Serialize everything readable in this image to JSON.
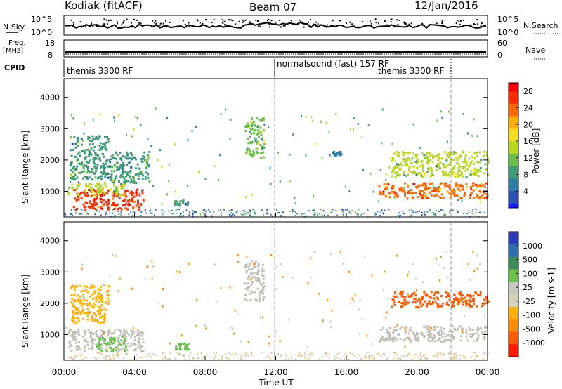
{
  "header": {
    "station": "Kodiak (fitACF)",
    "beam": "Beam 07",
    "date": "12/Jan/2016"
  },
  "panels": {
    "nsky": {
      "label": "N.Sky",
      "right_label": "N.Search",
      "left_ticks": [
        "10^5",
        "10^0"
      ],
      "right_ticks": [
        "10^5",
        "10^0"
      ]
    },
    "freq": {
      "label_line1": "Freq.",
      "label_line2": "[MHz]",
      "right_label": "Nave",
      "left_ticks": [
        "18",
        "8"
      ],
      "right_ticks": [
        "60",
        "0"
      ]
    },
    "cpid": {
      "label": "CPID",
      "segments": [
        "themis 3300 RF",
        "normalsound (fast) 157 RF",
        "themis 3300 RF"
      ]
    }
  },
  "colors": {
    "power_scale": [
      "#1a1aff",
      "#2a4fb0",
      "#2e7fa8",
      "#3f9a7a",
      "#6ac04a",
      "#b8d820",
      "#f0e020",
      "#ffb000",
      "#ff6a00",
      "#ff2a00",
      "#ff0000"
    ],
    "velocity_scale": [
      "#2a3ab8",
      "#2f6fae",
      "#3a8a5a",
      "#6ac04a",
      "#c8c8c0",
      "#d9d0b8",
      "#ffb000",
      "#ff8a00",
      "#ff5a00",
      "#ff1a00"
    ],
    "ground_scatter": "#c0c0b8"
  },
  "chart_data": [
    {
      "type": "heatmap",
      "name": "power",
      "ylabel": "Slant Range [km]",
      "xlim": [
        "00:00",
        "24:00"
      ],
      "ylim": [
        180,
        4600
      ],
      "y_ticks": [
        1000,
        2000,
        3000,
        4000
      ],
      "x_ticks": [
        "00:00",
        "04:00",
        "08:00",
        "12:00",
        "16:00",
        "20:00",
        "00:00"
      ],
      "xlabel": "Time UT",
      "colorbar": {
        "label": "Power [dB]",
        "ticks": [
          4,
          8,
          12,
          16,
          20,
          24,
          28
        ],
        "range": [
          0,
          30
        ]
      },
      "regions": [
        {
          "t0": 0.5,
          "t1": 4.5,
          "r0": 450,
          "r1": 1100,
          "level": 28
        },
        {
          "t0": 0.2,
          "t1": 3.5,
          "r0": 900,
          "r1": 1300,
          "level": 16
        },
        {
          "t0": 0.3,
          "t1": 2.5,
          "r0": 1400,
          "r1": 2800,
          "level": 8
        },
        {
          "t0": 2.5,
          "t1": 4.8,
          "r0": 1300,
          "r1": 2300,
          "level": 10
        },
        {
          "t0": 10.2,
          "t1": 11.3,
          "r0": 2100,
          "r1": 3400,
          "level": 12
        },
        {
          "t0": 6.2,
          "t1": 7.0,
          "r0": 550,
          "r1": 750,
          "level": 8
        },
        {
          "t0": 17.8,
          "t1": 24.0,
          "r0": 800,
          "r1": 1300,
          "level": 24
        },
        {
          "t0": 18.5,
          "t1": 24.0,
          "r0": 1500,
          "r1": 2300,
          "level": 14
        },
        {
          "t0": 15.2,
          "t1": 15.7,
          "r0": 2150,
          "r1": 2300,
          "level": 6
        }
      ]
    },
    {
      "type": "heatmap",
      "name": "velocity",
      "ylabel": "Slant Range [km]",
      "xlim": [
        "00:00",
        "24:00"
      ],
      "ylim": [
        180,
        4600
      ],
      "y_ticks": [
        1000,
        2000,
        3000,
        4000
      ],
      "x_ticks": [
        "00:00",
        "04:00",
        "08:00",
        "12:00",
        "16:00",
        "20:00",
        "00:00"
      ],
      "xlabel": "Time UT",
      "colorbar": {
        "label": "Velocity [m s-1]",
        "ticks": [
          1000,
          500,
          100,
          25,
          -25,
          -100,
          -500,
          -1000
        ]
      },
      "regions": [
        {
          "t0": 0.2,
          "t1": 4.5,
          "r0": 500,
          "r1": 1200,
          "level": "ground"
        },
        {
          "t0": 1.8,
          "t1": 3.5,
          "r0": 500,
          "r1": 950,
          "level": 100
        },
        {
          "t0": 0.3,
          "t1": 2.5,
          "r0": 1400,
          "r1": 2600,
          "level": -100
        },
        {
          "t0": 10.2,
          "t1": 11.3,
          "r0": 2100,
          "r1": 3400,
          "level": "ground"
        },
        {
          "t0": 6.2,
          "t1": 7.0,
          "r0": 550,
          "r1": 750,
          "level": 100
        },
        {
          "t0": 17.8,
          "t1": 24.0,
          "r0": 800,
          "r1": 1300,
          "level": "ground"
        },
        {
          "t0": 18.5,
          "t1": 24.0,
          "r0": 1900,
          "r1": 2400,
          "level": -500
        }
      ]
    }
  ],
  "axis": {
    "xlabel": "Time UT"
  }
}
